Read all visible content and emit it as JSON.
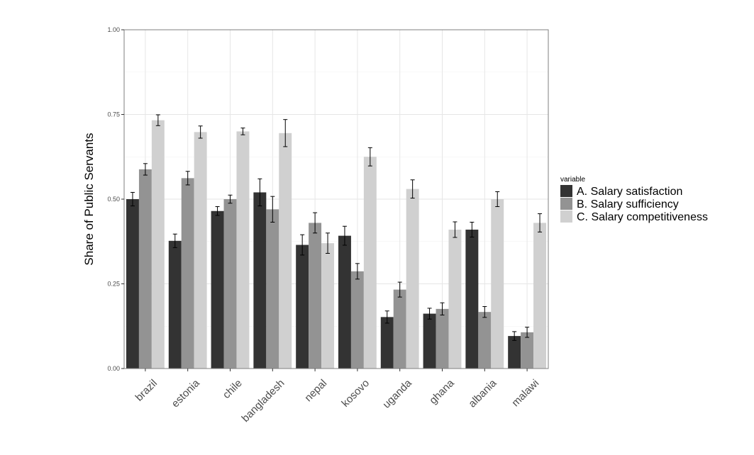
{
  "chart_data": {
    "type": "bar",
    "ylabel": "Share of Public Servants",
    "xlabel": "",
    "ylim": [
      0,
      1
    ],
    "yticks": [
      "0.00",
      "0.25",
      "0.50",
      "0.75",
      "1.00"
    ],
    "ytick_values": [
      0,
      0.25,
      0.5,
      0.75,
      1.0
    ],
    "grid": true,
    "legend_position": "right",
    "legend_title": "variable",
    "categories": [
      "brazil",
      "estonia",
      "chile",
      "bangladesh",
      "nepal",
      "kosovo",
      "uganda",
      "ghana",
      "albania",
      "malawi"
    ],
    "series": [
      {
        "name": "A. Salary satisfaction",
        "color": "#333333",
        "values": [
          0.5,
          0.377,
          0.465,
          0.52,
          0.365,
          0.392,
          0.152,
          0.162,
          0.41,
          0.096
        ],
        "err": [
          0.02,
          0.02,
          0.013,
          0.04,
          0.03,
          0.028,
          0.018,
          0.016,
          0.022,
          0.013
        ]
      },
      {
        "name": "B. Salary sufficiency",
        "color": "#939393",
        "values": [
          0.588,
          0.562,
          0.5,
          0.47,
          0.43,
          0.287,
          0.233,
          0.176,
          0.167,
          0.107
        ],
        "err": [
          0.017,
          0.02,
          0.012,
          0.038,
          0.03,
          0.023,
          0.022,
          0.018,
          0.016,
          0.015
        ]
      },
      {
        "name": "C. Salary competitiveness",
        "color": "#d0d0d0",
        "values": [
          0.733,
          0.698,
          0.7,
          0.695,
          0.37,
          0.625,
          0.53,
          0.41,
          0.5,
          0.43
        ],
        "err": [
          0.016,
          0.018,
          0.01,
          0.04,
          0.03,
          0.027,
          0.027,
          0.023,
          0.022,
          0.027
        ]
      }
    ]
  }
}
